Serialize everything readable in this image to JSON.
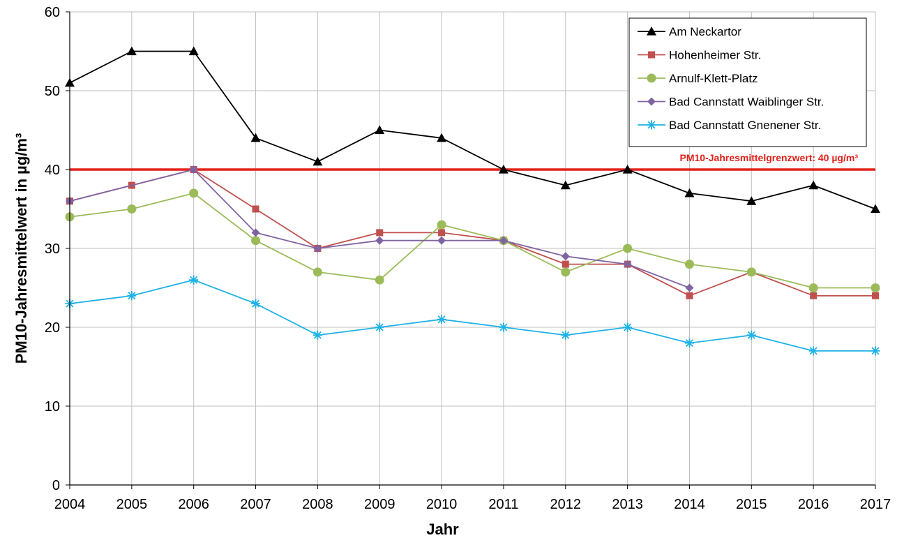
{
  "chart_data": {
    "type": "line",
    "title": "",
    "xlabel": "Jahr",
    "ylabel": "PM10-Jahresmittelwert in µg/m³",
    "x": [
      2004,
      2005,
      2006,
      2007,
      2008,
      2009,
      2010,
      2011,
      2012,
      2013,
      2014,
      2015,
      2016,
      2017
    ],
    "x_tick_labels": [
      "2004",
      "2005",
      "2006",
      "2007",
      "2008",
      "2009",
      "2010",
      "2011",
      "2012",
      "2013",
      "2014",
      "2015",
      "2016",
      "2017"
    ],
    "ylim": [
      0,
      60
    ],
    "y_ticks": [
      0,
      10,
      20,
      30,
      40,
      50,
      60
    ],
    "y_tick_labels": [
      "0",
      "10",
      "20",
      "30",
      "40",
      "50",
      "60"
    ],
    "grid": true,
    "legend_position": "top-right",
    "series": [
      {
        "name": "Am Neckartor",
        "color": "#000000",
        "marker": "triangle",
        "values": [
          51,
          55,
          55,
          44,
          41,
          45,
          44,
          40,
          38,
          40,
          37,
          36,
          38,
          35
        ]
      },
      {
        "name": "Hohenheimer Str.",
        "color": "#c0504d",
        "marker": "square",
        "values": [
          36,
          38,
          40,
          35,
          30,
          32,
          32,
          31,
          28,
          28,
          24,
          27,
          24,
          24
        ]
      },
      {
        "name": "Arnulf-Klett-Platz",
        "color": "#9bbb59",
        "marker": "circle",
        "values": [
          34,
          35,
          37,
          31,
          27,
          26,
          33,
          31,
          27,
          30,
          28,
          27,
          25,
          25
        ]
      },
      {
        "name": "Bad Cannstatt Waiblinger Str.",
        "color": "#8064a2",
        "marker": "diamond",
        "values": [
          36,
          null,
          40,
          32,
          30,
          31,
          31,
          31,
          29,
          28,
          25,
          null,
          null,
          null
        ]
      },
      {
        "name": "Bad Cannstatt Gnenener Str.",
        "color": "#1fb2e6",
        "marker": "star",
        "values": [
          23,
          24,
          26,
          23,
          19,
          20,
          21,
          20,
          19,
          20,
          18,
          19,
          17,
          17
        ]
      }
    ],
    "reference_line": {
      "value": 40,
      "color": "#e32119",
      "label": "PM10-Jahresmittelgrenzwert:  40 µg/m³"
    }
  }
}
